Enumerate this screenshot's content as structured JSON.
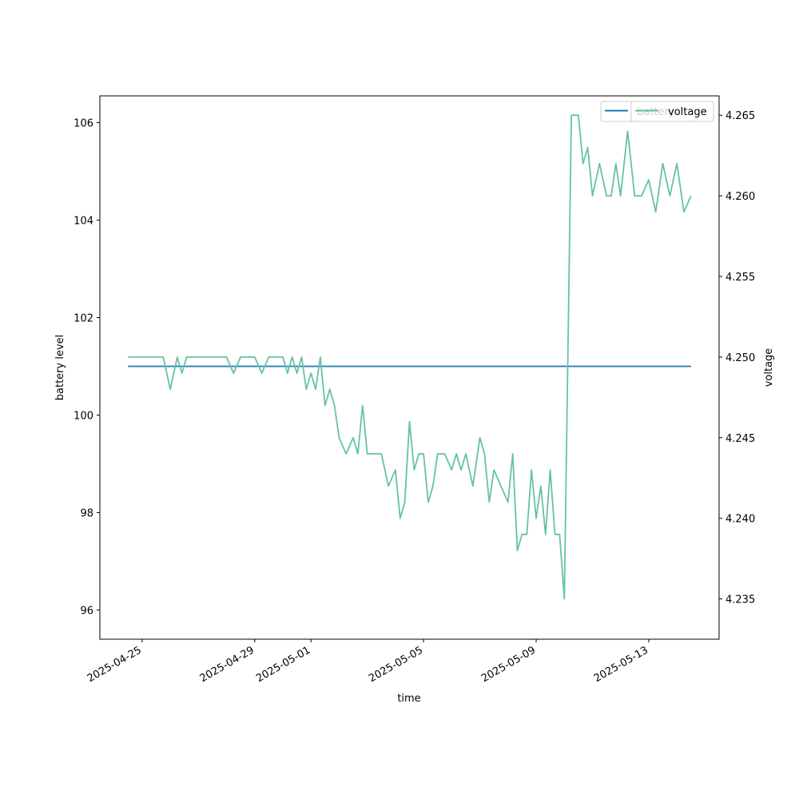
{
  "chart_data": {
    "type": "line",
    "xlabel": "time",
    "ylabel_left": "battery level",
    "ylabel_right": "voltage",
    "x_range": [
      "2025-04-23T12:00",
      "2025-05-15T12:00"
    ],
    "ylim_left": [
      95.4,
      106.55
    ],
    "ylim_right": [
      4.2325,
      4.2662
    ],
    "x_ticks": [
      "2025-04-25",
      "2025-04-29",
      "2025-05-01",
      "2025-05-05",
      "2025-05-09",
      "2025-05-13"
    ],
    "y_ticks_left": [
      96,
      98,
      100,
      102,
      104,
      106
    ],
    "y_ticks_right": [
      4.235,
      4.24,
      4.245,
      4.25,
      4.255,
      4.26,
      4.265
    ],
    "legends": [
      {
        "labels": [
          "battery"
        ],
        "colors": [
          "#1f77b4"
        ],
        "placement": "top-right"
      },
      {
        "labels": [
          "voltage"
        ],
        "colors": [
          "#66c2a5"
        ],
        "placement": "top-right"
      }
    ],
    "series": [
      {
        "name": "battery",
        "axis": "left",
        "color": "#1f77b4",
        "x": [
          "2025-04-24T12:00",
          "2025-05-14T12:00"
        ],
        "y": [
          101,
          101
        ]
      },
      {
        "name": "voltage",
        "axis": "right",
        "color": "#66c2a5",
        "x": [
          "2025-04-24T12:00",
          "2025-04-25T18:00",
          "2025-04-26T00:00",
          "2025-04-26T06:00",
          "2025-04-26T10:00",
          "2025-04-26T14:00",
          "2025-04-27T00:00",
          "2025-04-28T00:00",
          "2025-04-28T06:00",
          "2025-04-28T12:00",
          "2025-04-28T18:00",
          "2025-04-29T00:00",
          "2025-04-29T06:00",
          "2025-04-29T12:00",
          "2025-04-29T18:00",
          "2025-04-30T00:00",
          "2025-04-30T04:00",
          "2025-04-30T08:00",
          "2025-04-30T12:00",
          "2025-04-30T16:00",
          "2025-04-30T20:00",
          "2025-05-01T00:00",
          "2025-05-01T04:00",
          "2025-05-01T08:00",
          "2025-05-01T12:00",
          "2025-05-01T16:00",
          "2025-05-01T20:00",
          "2025-05-02T00:00",
          "2025-05-02T06:00",
          "2025-05-02T12:00",
          "2025-05-02T16:00",
          "2025-05-02T20:00",
          "2025-05-03T00:00",
          "2025-05-03T06:00",
          "2025-05-03T12:00",
          "2025-05-03T18:00",
          "2025-05-04T00:00",
          "2025-05-04T04:00",
          "2025-05-04T08:00",
          "2025-05-04T12:00",
          "2025-05-04T16:00",
          "2025-05-04T20:00",
          "2025-05-05T00:00",
          "2025-05-05T04:00",
          "2025-05-05T08:00",
          "2025-05-05T12:00",
          "2025-05-05T18:00",
          "2025-05-06T00:00",
          "2025-05-06T04:00",
          "2025-05-06T08:00",
          "2025-05-06T12:00",
          "2025-05-06T18:00",
          "2025-05-07T00:00",
          "2025-05-07T04:00",
          "2025-05-07T08:00",
          "2025-05-07T12:00",
          "2025-05-07T18:00",
          "2025-05-08T00:00",
          "2025-05-08T04:00",
          "2025-05-08T08:00",
          "2025-05-08T12:00",
          "2025-05-08T16:00",
          "2025-05-08T20:00",
          "2025-05-09T00:00",
          "2025-05-09T04:00",
          "2025-05-09T08:00",
          "2025-05-09T12:00",
          "2025-05-09T16:00",
          "2025-05-09T20:00",
          "2025-05-10T00:00",
          "2025-05-10T06:00",
          "2025-05-10T12:00",
          "2025-05-10T16:00",
          "2025-05-10T20:00",
          "2025-05-11T00:00",
          "2025-05-11T06:00",
          "2025-05-11T12:00",
          "2025-05-11T16:00",
          "2025-05-11T20:00",
          "2025-05-12T00:00",
          "2025-05-12T06:00",
          "2025-05-12T12:00",
          "2025-05-12T18:00",
          "2025-05-13T00:00",
          "2025-05-13T06:00",
          "2025-05-13T12:00",
          "2025-05-13T18:00",
          "2025-05-14T00:00",
          "2025-05-14T06:00",
          "2025-05-14T12:00"
        ],
        "y": [
          4.25,
          4.25,
          4.248,
          4.25,
          4.249,
          4.25,
          4.25,
          4.25,
          4.249,
          4.25,
          4.25,
          4.25,
          4.249,
          4.25,
          4.25,
          4.25,
          4.249,
          4.25,
          4.249,
          4.25,
          4.248,
          4.249,
          4.248,
          4.25,
          4.247,
          4.248,
          4.247,
          4.245,
          4.244,
          4.245,
          4.244,
          4.247,
          4.244,
          4.244,
          4.244,
          4.242,
          4.243,
          4.24,
          4.241,
          4.246,
          4.243,
          4.244,
          4.244,
          4.241,
          4.242,
          4.244,
          4.244,
          4.243,
          4.244,
          4.243,
          4.244,
          4.242,
          4.245,
          4.244,
          4.241,
          4.243,
          4.242,
          4.241,
          4.244,
          4.238,
          4.239,
          4.239,
          4.243,
          4.24,
          4.242,
          4.239,
          4.243,
          4.239,
          4.239,
          4.235,
          4.265,
          4.265,
          4.262,
          4.263,
          4.26,
          4.262,
          4.26,
          4.26,
          4.262,
          4.26,
          4.264,
          4.26,
          4.26,
          4.261,
          4.259,
          4.262,
          4.26,
          4.262,
          4.259,
          4.26
        ]
      }
    ]
  }
}
